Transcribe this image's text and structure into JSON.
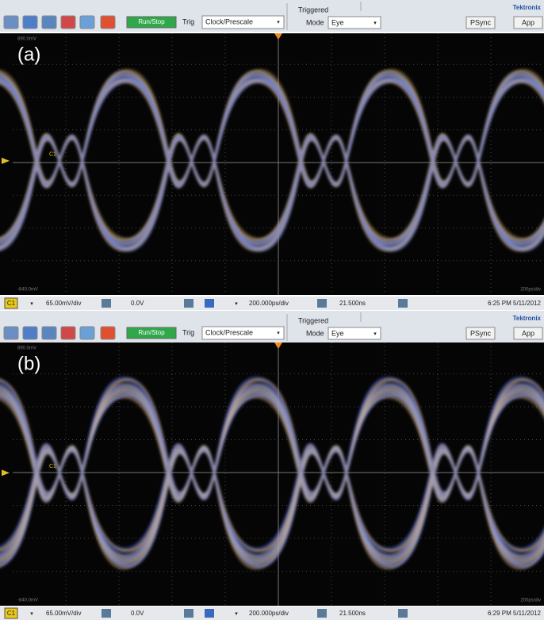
{
  "panels": [
    {
      "label": "(a)",
      "toolbar": {
        "run_stop": "Run/Stop",
        "trig": "Trig",
        "trigger_source": "Clock/Prescale",
        "trigger_state": "Triggered",
        "mode_label": "Mode",
        "mode": "Eye",
        "brand": "Tektronix",
        "psync": "PSync",
        "app": "App"
      },
      "screen": {
        "top_level": "890.0mV",
        "bottom_level": "-840.0mV",
        "channel_marker": "C1",
        "timebase": "200ps/div"
      },
      "status": {
        "channel": "C1",
        "scale": "65.00mV/div",
        "offset": "0.0V",
        "horizontal": "200.000ps/div",
        "position": "21.500ns",
        "timestamp": "6:25 PM 5/11/2012"
      }
    },
    {
      "label": "(b)",
      "toolbar": {
        "run_stop": "Run/Stop",
        "trig": "Trig",
        "trigger_source": "Clock/Prescale",
        "trigger_state": "Triggered",
        "mode_label": "Mode",
        "mode": "Eye",
        "brand": "Tektronix",
        "psync": "PSync",
        "app": "App"
      },
      "screen": {
        "top_level": "890.0mV",
        "bottom_level": "-840.0mV",
        "channel_marker": "C1",
        "timebase": "200ps/div"
      },
      "status": {
        "channel": "C1",
        "scale": "65.00mV/div",
        "offset": "0.0V",
        "horizontal": "200.000ps/div",
        "position": "21.500ns",
        "timestamp": "6:29 PM 5/11/2012"
      }
    }
  ]
}
